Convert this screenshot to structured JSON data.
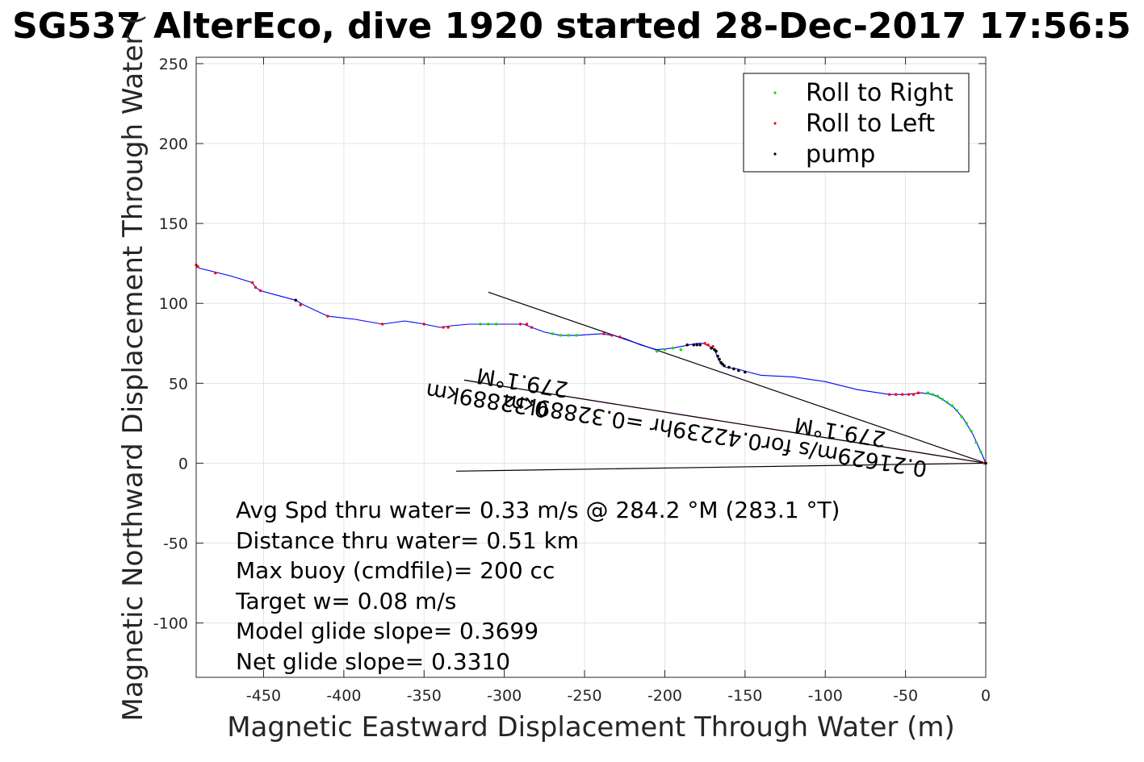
{
  "chart_data": {
    "type": "scatter",
    "title": "SG537 AlterEco, dive 1920 started 28-Dec-2017 17:56:5",
    "xlabel": "Magnetic Eastward Displacement Through Water (m)",
    "ylabel": "Magnetic Northward Displacement Through Water (",
    "xlim": [
      -492,
      0
    ],
    "ylim": [
      -134,
      254
    ],
    "xticks": [
      -450,
      -400,
      -350,
      -300,
      -250,
      -200,
      -150,
      -100,
      -50,
      0
    ],
    "yticks": [
      250,
      200,
      150,
      100,
      50,
      0,
      -50,
      -100
    ],
    "grid": true,
    "legend": {
      "position": "top-right",
      "entries": [
        {
          "label": "Roll to Right",
          "color": "#00e000"
        },
        {
          "label": "Roll to Left",
          "color": "#ff0000"
        },
        {
          "label": "pump",
          "color": "#000000"
        }
      ]
    },
    "track": {
      "color": "#0000ff",
      "points": [
        [
          0,
          0
        ],
        [
          -3,
          7
        ],
        [
          -8,
          18
        ],
        [
          -14,
          28
        ],
        [
          -20,
          35
        ],
        [
          -27,
          40
        ],
        [
          -33,
          43
        ],
        [
          -40,
          44
        ],
        [
          -50,
          43
        ],
        [
          -60,
          43
        ],
        [
          -80,
          46
        ],
        [
          -100,
          51
        ],
        [
          -120,
          54
        ],
        [
          -140,
          55
        ],
        [
          -148,
          57
        ],
        [
          -155,
          59
        ],
        [
          -162,
          60
        ],
        [
          -165,
          62
        ],
        [
          -167,
          66
        ],
        [
          -169,
          71
        ],
        [
          -172,
          73
        ],
        [
          -176,
          75
        ],
        [
          -180,
          75
        ],
        [
          -185,
          74
        ],
        [
          -195,
          72
        ],
        [
          -205,
          71
        ],
        [
          -215,
          74
        ],
        [
          -225,
          78
        ],
        [
          -232,
          80
        ],
        [
          -240,
          81
        ],
        [
          -255,
          80
        ],
        [
          -265,
          80
        ],
        [
          -275,
          82
        ],
        [
          -283,
          85
        ],
        [
          -288,
          87
        ],
        [
          -300,
          87
        ],
        [
          -310,
          87
        ],
        [
          -322,
          87
        ],
        [
          -333,
          86
        ],
        [
          -340,
          85
        ],
        [
          -350,
          87
        ],
        [
          -362,
          89
        ],
        [
          -376,
          87
        ],
        [
          -393,
          90
        ],
        [
          -410,
          92
        ],
        [
          -425,
          99
        ],
        [
          -430,
          102
        ],
        [
          -445,
          106
        ],
        [
          -452,
          108
        ],
        [
          -455,
          110
        ],
        [
          -457,
          113
        ],
        [
          -470,
          117
        ],
        [
          -490,
          122
        ],
        [
          -492,
          124
        ]
      ]
    },
    "roll_right": [
      [
        0,
        0
      ],
      [
        -3,
        7
      ],
      [
        -6,
        13
      ],
      [
        -9,
        20
      ],
      [
        -12,
        25
      ],
      [
        -15,
        29
      ],
      [
        -18,
        33
      ],
      [
        -21,
        36
      ],
      [
        -24,
        38
      ],
      [
        -27,
        40
      ],
      [
        -30,
        42
      ],
      [
        -33,
        43
      ],
      [
        -36,
        44
      ],
      [
        -190,
        71
      ],
      [
        -195,
        72
      ],
      [
        -200,
        71
      ],
      [
        -205,
        70
      ],
      [
        -270,
        81
      ],
      [
        -265,
        80
      ],
      [
        -260,
        80
      ],
      [
        -255,
        80
      ],
      [
        -305,
        87
      ],
      [
        -310,
        87
      ],
      [
        -315,
        87
      ]
    ],
    "roll_left": [
      [
        0,
        0
      ],
      [
        -1,
        0
      ],
      [
        -42,
        44
      ],
      [
        -45,
        43
      ],
      [
        -48,
        43
      ],
      [
        -52,
        43
      ],
      [
        -56,
        43
      ],
      [
        -60,
        43
      ],
      [
        -170,
        73
      ],
      [
        -173,
        74
      ],
      [
        -175,
        75
      ],
      [
        -238,
        81
      ],
      [
        -233,
        80
      ],
      [
        -228,
        79
      ],
      [
        -283,
        85
      ],
      [
        -286,
        87
      ],
      [
        -290,
        87
      ],
      [
        -335,
        85
      ],
      [
        -338,
        85
      ],
      [
        -350,
        87
      ],
      [
        -376,
        87
      ],
      [
        -410,
        92
      ],
      [
        -427,
        99
      ],
      [
        -452,
        108
      ],
      [
        -455,
        110
      ],
      [
        -457,
        113
      ],
      [
        -480,
        119
      ],
      [
        -491,
        123
      ],
      [
        -492,
        124
      ]
    ],
    "pump": [
      [
        0,
        0
      ],
      [
        -163,
        61
      ],
      [
        -164,
        62
      ],
      [
        -165,
        63
      ],
      [
        -166,
        65
      ],
      [
        -167,
        67
      ],
      [
        -168,
        70
      ],
      [
        -169,
        71
      ],
      [
        -171,
        72
      ],
      [
        -178,
        74
      ],
      [
        -180,
        74
      ],
      [
        -182,
        74
      ],
      [
        -186,
        74
      ],
      [
        -150,
        57
      ],
      [
        -154,
        58
      ],
      [
        -157,
        59
      ],
      [
        -160,
        60
      ],
      [
        -430,
        102
      ]
    ],
    "lines": [
      {
        "color": "#000000",
        "points": [
          [
            0,
            0
          ],
          [
            -310,
            107
          ]
        ]
      },
      {
        "color": "#000000",
        "points": [
          [
            0,
            0
          ],
          [
            -330,
            -5
          ]
        ]
      },
      {
        "color": "#ff00ff",
        "points": [
          [
            0,
            0
          ],
          [
            -325,
            52
          ]
        ]
      },
      {
        "color": "#000000",
        "points": [
          [
            0,
            0
          ],
          [
            -325,
            52
          ]
        ]
      }
    ],
    "rotated_labels": [
      {
        "text": "279.1°M",
        "at": [
          -288,
          55
        ]
      },
      {
        "text": "0.32889km",
        "at": [
          -310,
          44
        ]
      },
      {
        "text": "0.21629m/s for0.42239hr =0.32889km",
        "at": [
          -168,
          22
        ]
      },
      {
        "text": "279.1°M",
        "at": [
          -90,
          24
        ]
      }
    ],
    "annotations": [
      "Avg Spd thru water=  0.33 m/s @ 284.2 °M (283.1 °T)",
      "Distance thru water=  0.51 km",
      "Max buoy (cmdfile)= 200 cc",
      "Target w= 0.08 m/s",
      "Model glide slope= 0.3699",
      "Net glide slope= 0.3310"
    ]
  }
}
